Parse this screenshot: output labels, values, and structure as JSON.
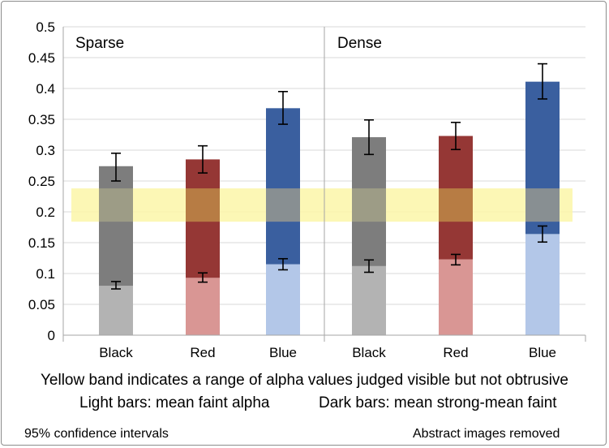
{
  "chart_data": {
    "type": "bar",
    "stacked": true,
    "ylim": [
      0,
      0.5
    ],
    "yticks": [
      "0",
      "0.05",
      "0.1",
      "0.15",
      "0.2",
      "0.25",
      "0.3",
      "0.35",
      "0.4",
      "0.45",
      "0.5"
    ],
    "panels": [
      "Sparse",
      "Dense"
    ],
    "categories": [
      "Black",
      "Red",
      "Blue"
    ],
    "bars": [
      {
        "panel": "Sparse",
        "category": "Black",
        "faint": 0.08,
        "strong": 0.274,
        "faint_ci": [
          0.075,
          0.087
        ],
        "strong_ci": [
          0.25,
          0.295
        ]
      },
      {
        "panel": "Sparse",
        "category": "Red",
        "faint": 0.093,
        "strong": 0.285,
        "faint_ci": [
          0.086,
          0.101
        ],
        "strong_ci": [
          0.263,
          0.307
        ]
      },
      {
        "panel": "Sparse",
        "category": "Blue",
        "faint": 0.115,
        "strong": 0.368,
        "faint_ci": [
          0.106,
          0.124
        ],
        "strong_ci": [
          0.342,
          0.395
        ]
      },
      {
        "panel": "Dense",
        "category": "Black",
        "faint": 0.112,
        "strong": 0.321,
        "faint_ci": [
          0.102,
          0.122
        ],
        "strong_ci": [
          0.293,
          0.349
        ]
      },
      {
        "panel": "Dense",
        "category": "Red",
        "faint": 0.123,
        "strong": 0.323,
        "faint_ci": [
          0.114,
          0.131
        ],
        "strong_ci": [
          0.301,
          0.345
        ]
      },
      {
        "panel": "Dense",
        "category": "Blue",
        "faint": 0.164,
        "strong": 0.411,
        "faint_ci": [
          0.151,
          0.177
        ],
        "strong_ci": [
          0.383,
          0.44
        ]
      }
    ],
    "band": [
      0.184,
      0.238
    ],
    "colors": {
      "Black": {
        "light": "#b3b3b3",
        "dark": "#7d7d7d"
      },
      "Red": {
        "light": "#d99694",
        "dark": "#953735"
      },
      "Blue": {
        "light": "#b3c7e8",
        "dark": "#3a5f9f"
      },
      "band": "#fbf6a8",
      "band_over_light": "#c9c88c",
      "band_over_dark": {
        "Black": "#9d9c86",
        "Red": "#b77c44",
        "Blue": "#888f92"
      }
    }
  },
  "captions": {
    "line1": "Yellow band indicates a range of alpha values judged visible but not obtrusive",
    "line2_left": "Light bars: mean faint alpha",
    "line2_right": "Dark bars: mean strong-mean faint"
  },
  "footer": {
    "left": "95% confidence intervals",
    "right": "Abstract images removed"
  }
}
